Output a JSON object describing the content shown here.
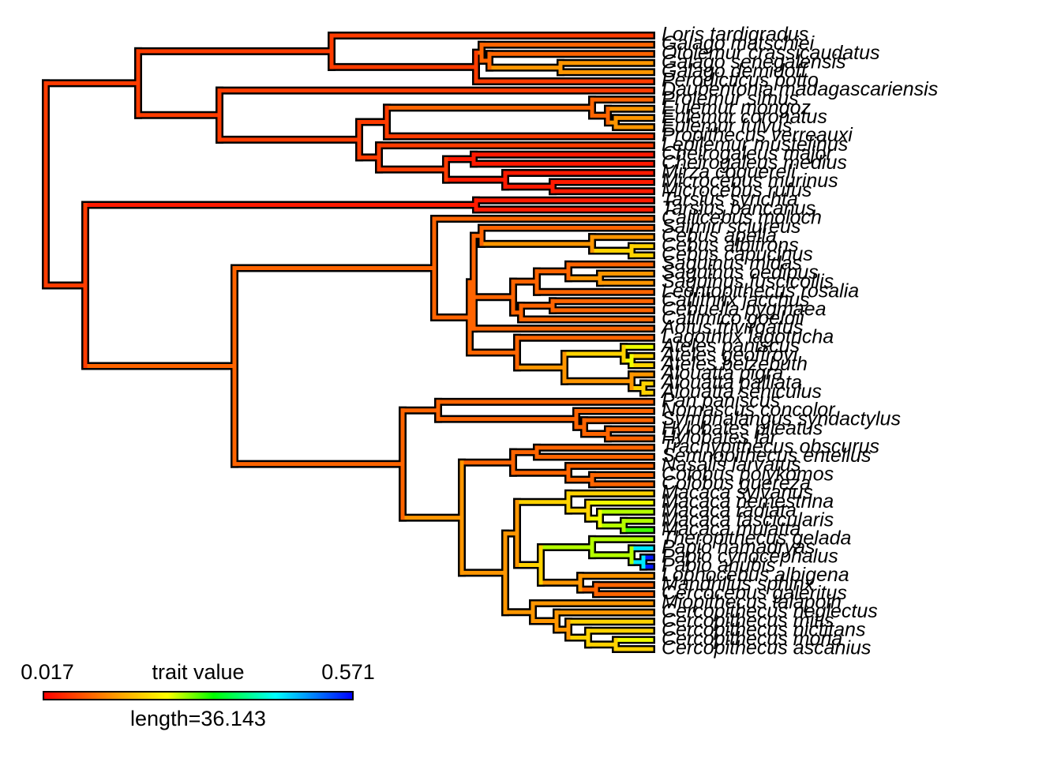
{
  "tips": [
    "Loris tardigradus",
    "Galago matschiei",
    "Otolemur crassicaudatus",
    "Galago senegalensis",
    "Galago demidoff",
    "Perodicticus potto",
    "Daubentonia madagascariensis",
    "Prolemur simus",
    "Eulemur mongoz",
    "Eulemur coronatus",
    "Eulemur fulvus",
    "Propithecus verreauxi",
    "Lepilemur mustelinus",
    "Cheirogaleus major",
    "Cheirogaleus medius",
    "Mirza coquereli",
    "Microcebus murinus",
    "Microcebus rufus",
    "Tarsius syrichta",
    "Tarsius bancanus",
    "Callicebus moloch",
    "Saimiri sciureus",
    "Cebus apella",
    "Cebus albifrons",
    "Cebus capucinus",
    "Saguinus midas",
    "Saguinus oedipus",
    "Saguinus fuscicollis",
    "Leontopithecus rosalia",
    "Callithrix jacchus",
    "Cebuella pygmaea",
    "Callimico goeldii",
    "Aotus trivirgatus",
    "Lagothrix lagotricha",
    "Ateles paniscus",
    "Ateles geoffroyi",
    "Ateles belzebuth",
    "Alouatta pigra",
    "Alouatta palliata",
    "Alouatta seniculus",
    "Pan paniscus",
    "Nomascus concolor",
    "Symphalangus syndactylus",
    "Hylobates pileatus",
    "Hylobates lar",
    "Trachypithecus obscurus",
    "Semnopithecus entellus",
    "Nasalis larvatus",
    "Colobus polykomos",
    "Colobus guereza",
    "Macaca sylvanus",
    "Macaca nemestrina",
    "Macaca radiata",
    "Macaca fascicularis",
    "Macaca mulatta",
    "Theropithecus gelada",
    "Papio hamadryas",
    "Papio cynocephalus",
    "Papio anubis",
    "Lophocebus albigena",
    "Mandrillus sphinx",
    "Cercocebus galeritus",
    "Miopithecus talapoin",
    "Cercopithecus neglectus",
    "Cercopithecus mitis",
    "Cercopithecus nictitans",
    "Cercopithecus mona",
    "Cercopithecus ascanius"
  ],
  "legend": {
    "min_label": "0.017",
    "title": "trait value",
    "max_label": "0.571",
    "length_label": "length=36.143"
  }
}
